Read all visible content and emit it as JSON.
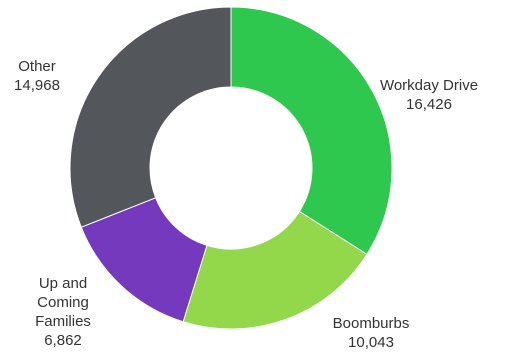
{
  "chart_data": {
    "type": "pie",
    "style": "donut",
    "title": "",
    "categories": [
      "Workday Drive",
      "Boomburbs",
      "Up and Coming Families",
      "Other"
    ],
    "values": [
      16426,
      10043,
      6862,
      14968
    ],
    "value_labels": [
      "16,426",
      "10,043",
      "6,862",
      "14,968"
    ],
    "colors": [
      "#2ec84f",
      "#93d84a",
      "#7439bd",
      "#53565a"
    ],
    "label_lines": [
      [
        "Workday Drive",
        "16,426"
      ],
      [
        "Boomburbs",
        "10,043"
      ],
      [
        "Up and",
        "Coming",
        "Families",
        "6,862"
      ],
      [
        "Other",
        "14,968"
      ]
    ],
    "legend": "none"
  }
}
